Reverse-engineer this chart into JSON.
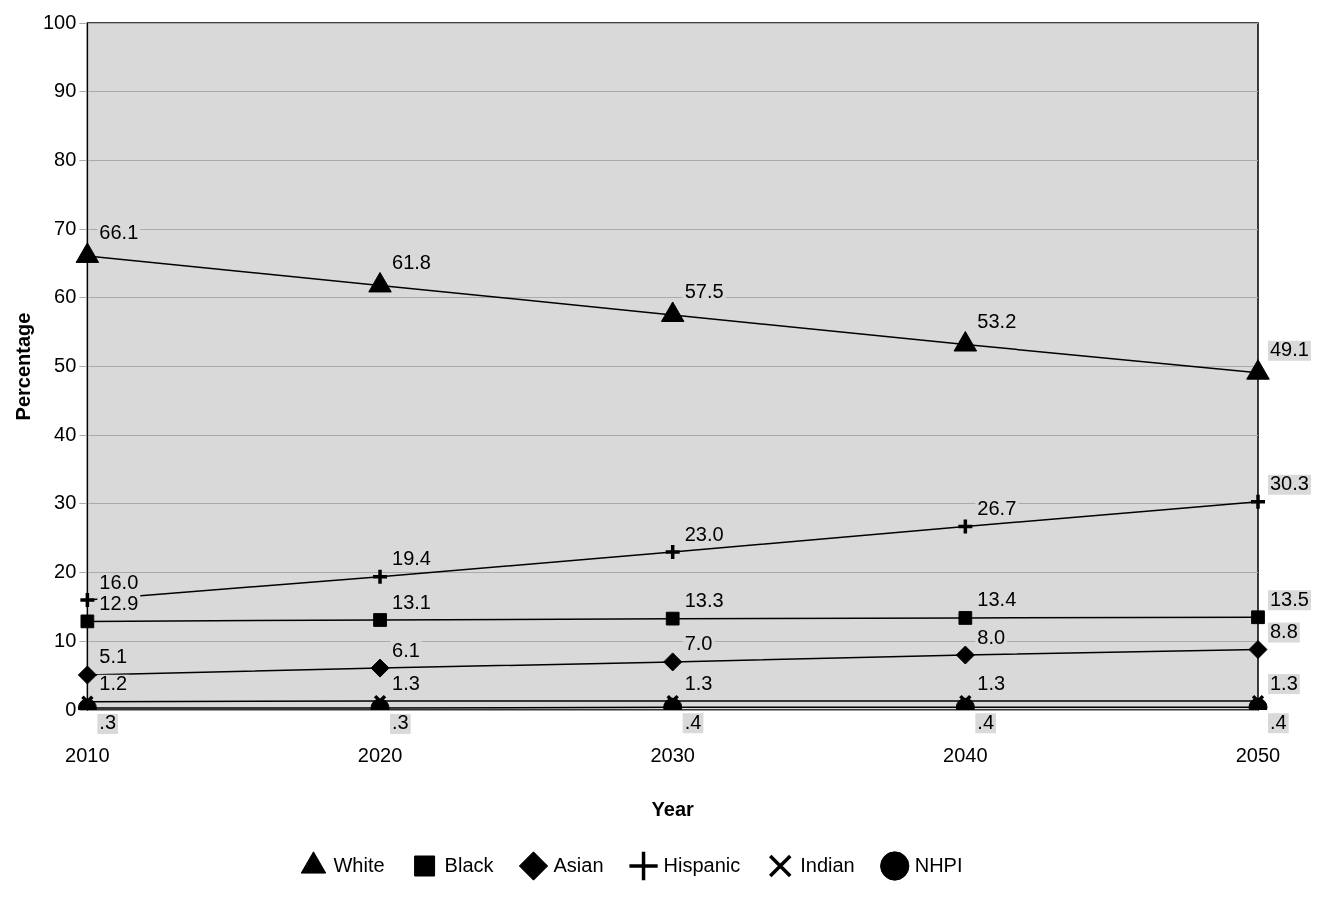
{
  "chart_data": {
    "type": "line",
    "xlabel": "Year",
    "ylabel": "Percentage",
    "categories": [
      "2010",
      "2020",
      "2030",
      "2040",
      "2050"
    ],
    "ylim": [
      0,
      100
    ],
    "yticks": [
      0,
      10,
      20,
      30,
      40,
      50,
      60,
      70,
      80,
      90,
      100
    ],
    "grid": "y",
    "legend": "bottom",
    "series": [
      {
        "name": "White",
        "color": "#000000",
        "marker": "triangle",
        "values": [
          66.1,
          61.8,
          57.5,
          53.2,
          49.1
        ],
        "value_labels": [
          "66.1",
          "61.8",
          "57.5",
          "53.2",
          "49.1"
        ]
      },
      {
        "name": "Black",
        "color": "#000000",
        "marker": "square",
        "values": [
          12.9,
          13.1,
          13.3,
          13.4,
          13.5
        ],
        "value_labels": [
          "12.9",
          "13.1",
          "13.3",
          "13.4",
          "13.5"
        ]
      },
      {
        "name": "Asian",
        "color": "#000000",
        "marker": "diamond",
        "values": [
          5.1,
          6.1,
          7.0,
          8.0,
          8.8
        ],
        "value_labels": [
          "5.1",
          "6.1",
          "7.0",
          "8.0",
          "8.8"
        ]
      },
      {
        "name": "Hispanic",
        "color": "#000000",
        "marker": "cross",
        "values": [
          16.0,
          19.4,
          23.0,
          26.7,
          30.3
        ],
        "value_labels": [
          "16.0",
          "19.4",
          "23.0",
          "26.7",
          "30.3"
        ]
      },
      {
        "name": "Indian",
        "color": "#000000",
        "marker": "x",
        "values": [
          1.2,
          1.3,
          1.3,
          1.3,
          1.3
        ],
        "value_labels": [
          "1.2",
          "1.3",
          "1.3",
          "1.3",
          "1.3"
        ]
      },
      {
        "name": "NHPI",
        "color": "#000000",
        "marker": "circle",
        "values": [
          0.3,
          0.3,
          0.4,
          0.4,
          0.4
        ],
        "value_labels": [
          ".3",
          ".3",
          ".4",
          ".4",
          ".4"
        ]
      }
    ]
  }
}
